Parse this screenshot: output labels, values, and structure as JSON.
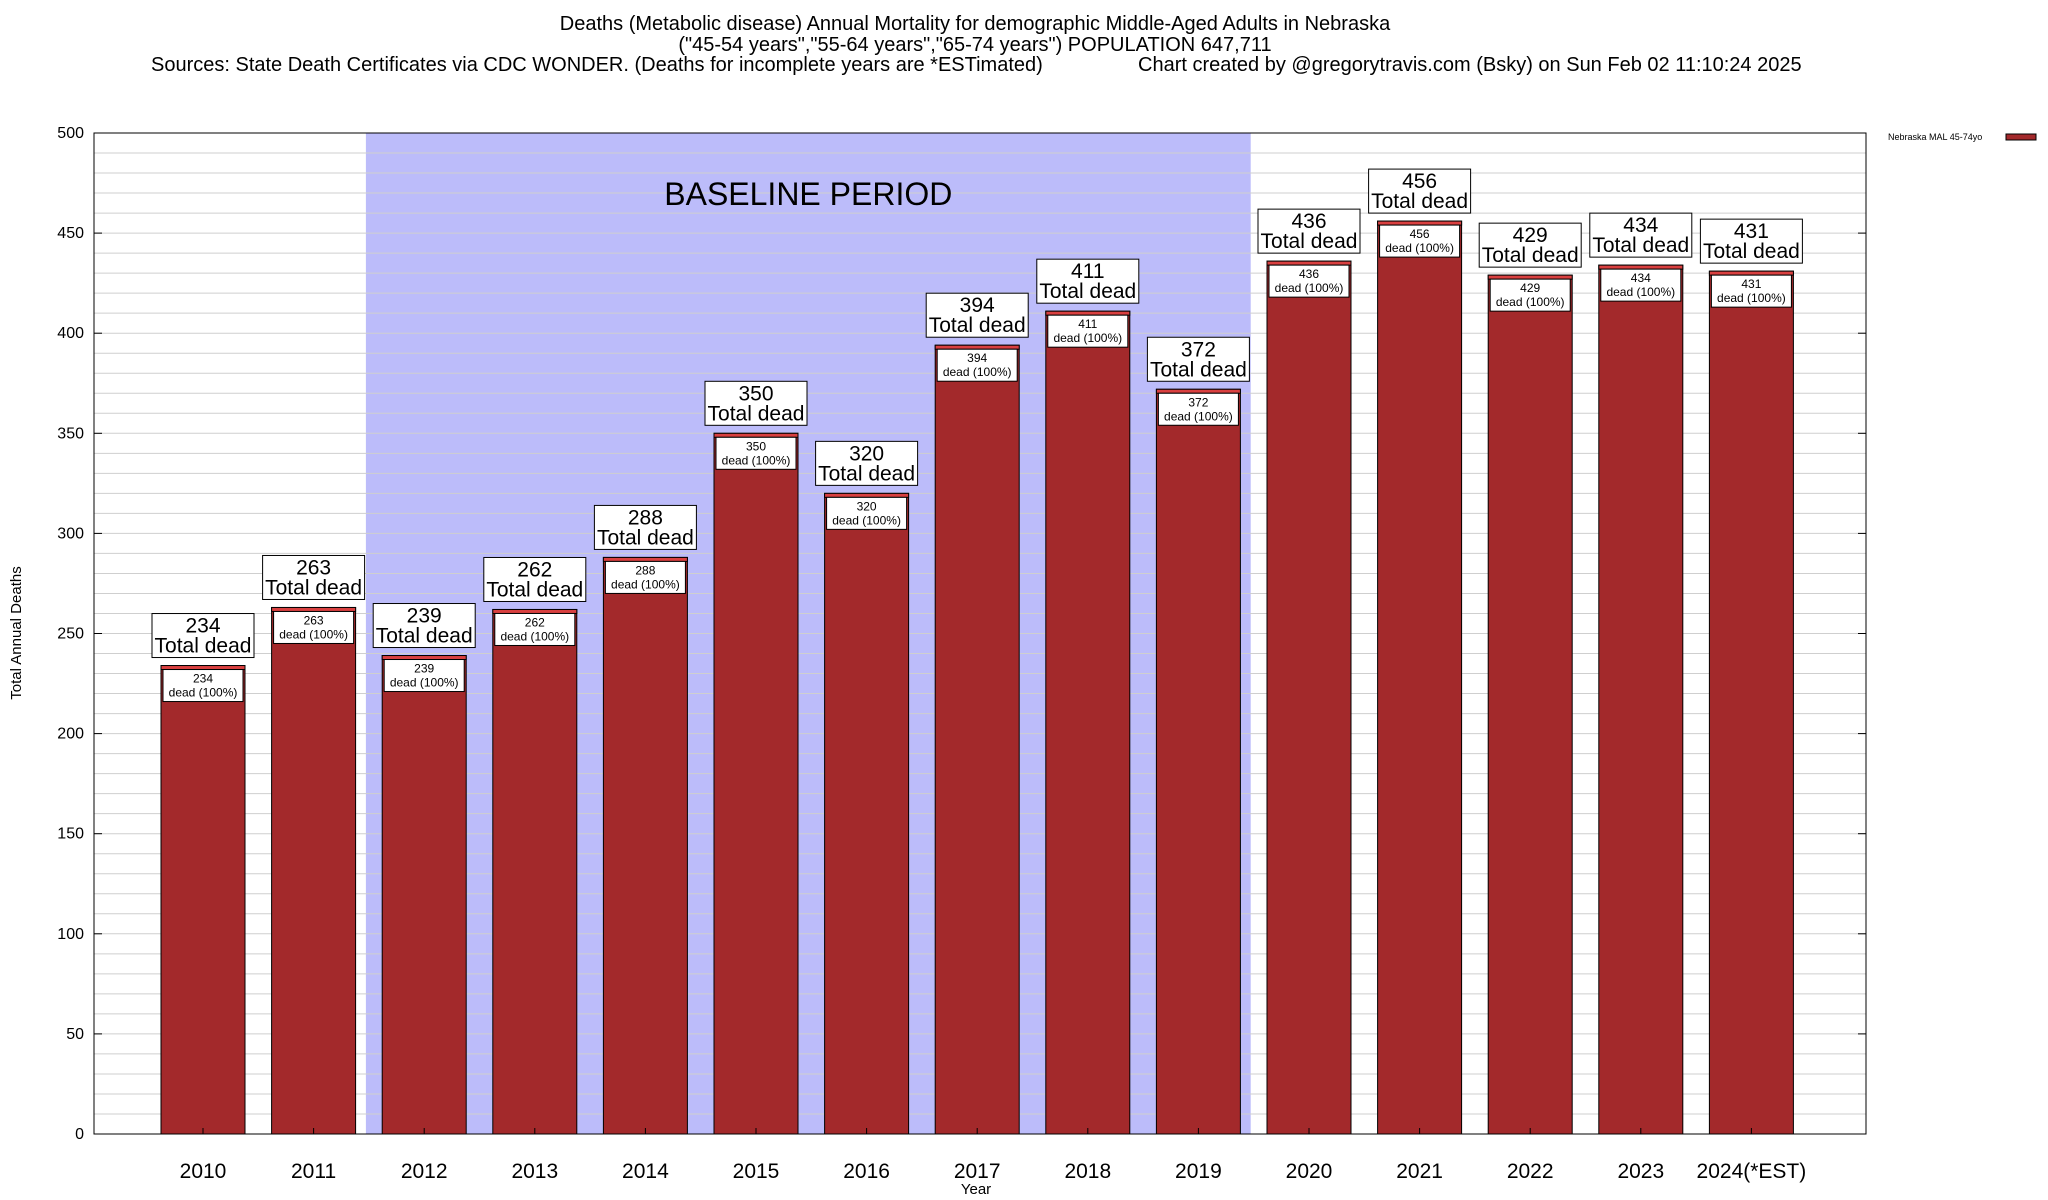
{
  "colors": {
    "bar": "#a3292b",
    "bar_top": "#d94040",
    "baseline_band": "#bcbcfa",
    "grid": "#cfcfcf",
    "axis": "#000000"
  },
  "chart_data": {
    "type": "bar",
    "title_lines": [
      "Deaths (Metabolic disease) Annual Mortality for demographic Middle-Aged Adults in Nebraska",
      "(\"45-54 years\",\"55-64 years\",\"65-74 years\") POPULATION 647,711"
    ],
    "sources_text": "Sources: State Death Certificates via CDC WONDER. (Deaths for incomplete years are *ESTimated)",
    "credit_text": "Chart created by @gregorytravis.com (Bsky) on Sun Feb 02 11:10:24 2025",
    "xlabel": "Year",
    "ylabel": "Total Annual Deaths",
    "ylim": [
      0,
      500
    ],
    "y_ticks": [
      0,
      50,
      100,
      150,
      200,
      250,
      300,
      350,
      400,
      450,
      500
    ],
    "grid": true,
    "legend_position": "top-right",
    "categories": [
      "2010",
      "2011",
      "2012",
      "2013",
      "2014",
      "2015",
      "2016",
      "2017",
      "2018",
      "2019",
      "2020",
      "2021",
      "2022",
      "2023",
      "2024(*EST)"
    ],
    "series": [
      {
        "name": "Nebraska MAL 45-74yo",
        "values": [
          234,
          263,
          239,
          262,
          288,
          350,
          320,
          394,
          411,
          372,
          436,
          456,
          429,
          434,
          431
        ]
      }
    ],
    "baseline_period": {
      "label": "BASELINE PERIOD",
      "start_category": "2012",
      "end_category": "2019"
    },
    "total_label_suffix": "Total dead",
    "inner_label_suffix": "dead (100%)"
  }
}
